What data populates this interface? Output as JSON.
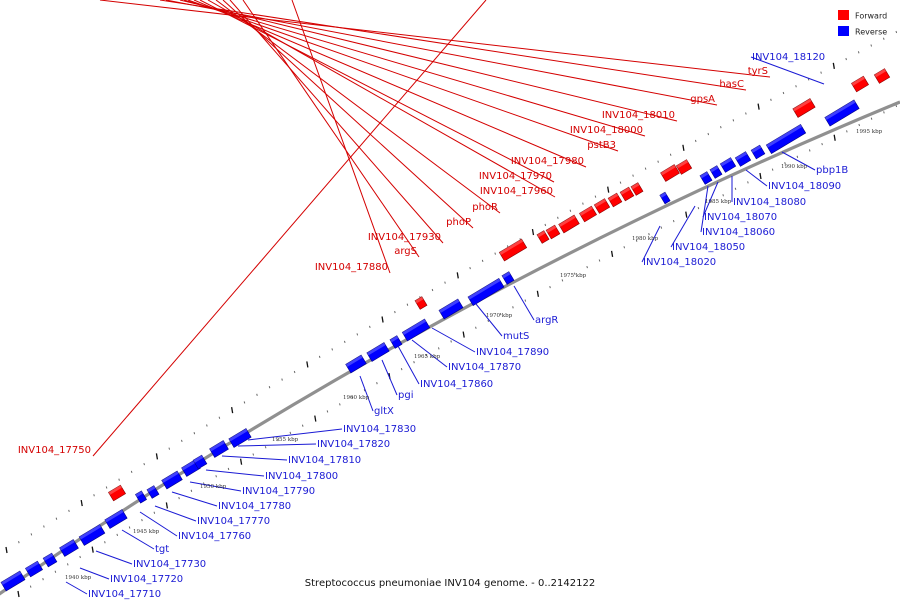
{
  "legend": {
    "forward": {
      "label": "Forward",
      "color": "#ff0000"
    },
    "reverse": {
      "label": "Reverse",
      "color": "#0000ff"
    }
  },
  "caption": "Streptococcus pneumoniae INV104 genome. - 0..2142122",
  "scale_labels": [
    "1940 kbp",
    "1945 kbp",
    "1950 kbp",
    "1955 kbp",
    "1960 kbp",
    "1965 kbp",
    "1970 kbp",
    "1975 kbp",
    "1980 kbp",
    "1985 kbp",
    "1990 kbp",
    "1995 kbp"
  ],
  "forward_labels": [
    "INV104_17750",
    "INV104_17880",
    "argS",
    "INV104_17930",
    "phoP",
    "phoR",
    "INV104_17960",
    "INV104_17970",
    "INV104_17980",
    "pstB3",
    "INV104_18000",
    "INV104_18010",
    "gpsA",
    "hasC",
    "tyrS"
  ],
  "reverse_labels": [
    "INV104_17710",
    "INV104_17720",
    "INV104_17730",
    "tgt",
    "INV104_17760",
    "INV104_17770",
    "INV104_17780",
    "INV104_17790",
    "INV104_17800",
    "INV104_17810",
    "INV104_17820",
    "INV104_17830",
    "gltX",
    "pgi",
    "INV104_17860",
    "INV104_17870",
    "INV104_17890",
    "mutS",
    "argR",
    "INV104_18020",
    "INV104_18050",
    "INV104_18060",
    "INV104_18070",
    "INV104_18080",
    "INV104_18090",
    "pbp1B",
    "INV104_18120"
  ]
}
